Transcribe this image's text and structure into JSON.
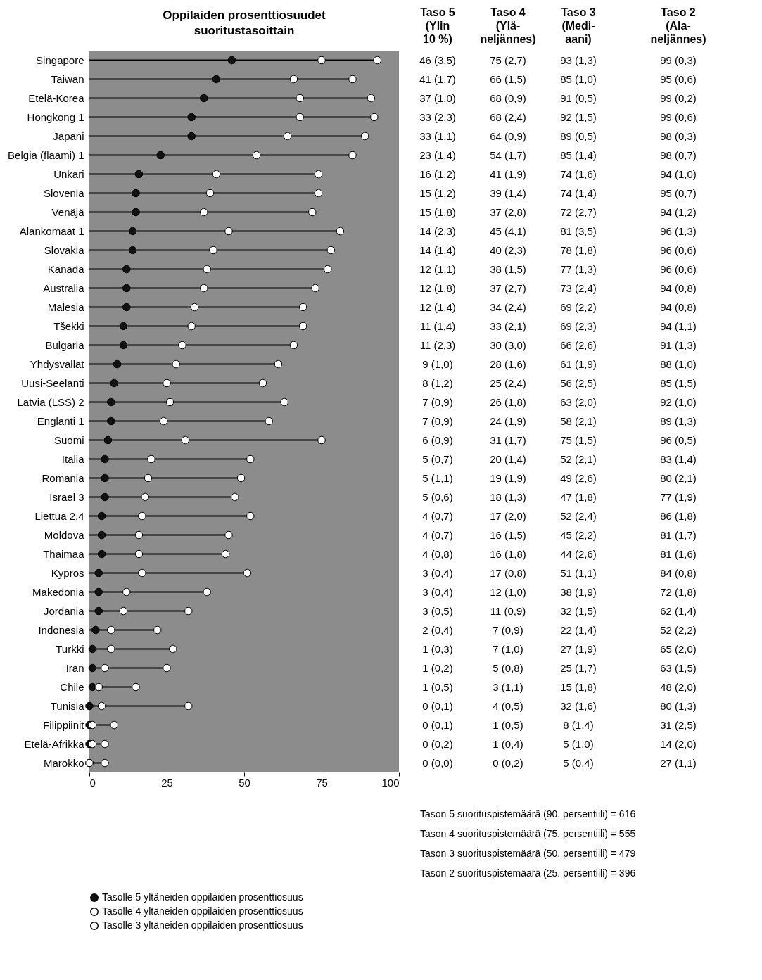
{
  "chart_data": [
    {
      "type": "scatter",
      "orientation": "horizontal",
      "title": "Oppilaiden prosenttiosuudet\nsuoritustasoittain",
      "categories": [
        "Singapore",
        "Taiwan",
        "Etelä-Korea",
        "Hongkong 1",
        "Japani",
        "Belgia (flaami) 1",
        "Unkari",
        "Slovenia",
        "Venäjä",
        "Alankomaat 1",
        "Slovakia",
        "Kanada",
        "Australia",
        "Malesia",
        "Tšekki",
        "Bulgaria",
        "Yhdysvallat",
        "Uusi-Seelanti",
        "Latvia (LSS) 2",
        "Englanti 1",
        "Suomi",
        "Italia",
        "Romania",
        "Israel 3",
        "Liettua 2,4",
        "Moldova",
        "Thaimaa",
        "Kypros",
        "Makedonia",
        "Jordania",
        "Indonesia",
        "Turkki",
        "Iran",
        "Chile",
        "Tunisia",
        "Filippiinit",
        "Etelä-Afrikka",
        "Marokko"
      ],
      "series": [
        {
          "name": "Tasolle 5 yltäneiden oppilaiden prosenttiosuus",
          "type": "scatter",
          "color": "#111111",
          "values": [
            46,
            41,
            37,
            33,
            33,
            23,
            16,
            15,
            15,
            14,
            14,
            12,
            12,
            12,
            11,
            11,
            9,
            8,
            7,
            7,
            6,
            5,
            5,
            5,
            4,
            4,
            4,
            3,
            3,
            3,
            2,
            1,
            1,
            1,
            0,
            0,
            0,
            0
          ],
          "value_labels": [
            "46 (3,5)",
            "41 (1,7)",
            "37 (1,0)",
            "33 (2,3)",
            "33 (1,1)",
            "23 (1,4)",
            "16 (1,2)",
            "15 (1,2)",
            "15 (1,8)",
            "14 (2,3)",
            "14 (1,4)",
            "12 (1,1)",
            "12 (1,8)",
            "12 (1,4)",
            "11 (1,4)",
            "11 (2,3)",
            "9 (1,0)",
            "8 (1,2)",
            "7 (0,9)",
            "7 (0,9)",
            "6 (0,9)",
            "5 (0,7)",
            "5 (1,1)",
            "5 (0,6)",
            "4 (0,7)",
            "4 (0,7)",
            "4 (0,8)",
            "3 (0,4)",
            "3 (0,4)",
            "3 (0,5)",
            "2 (0,4)",
            "1 (0,3)",
            "1 (0,2)",
            "1 (0,5)",
            "0 (0,1)",
            "0 (0,1)",
            "0 (0,2)",
            "0 (0,0)"
          ]
        },
        {
          "name": "Tasolle 4 yltäneiden oppilaiden prosenttiosuus",
          "type": "scatter",
          "color": "#ffffff",
          "values": [
            75,
            66,
            68,
            68,
            64,
            54,
            41,
            39,
            37,
            45,
            40,
            38,
            37,
            34,
            33,
            30,
            28,
            25,
            26,
            24,
            31,
            20,
            19,
            18,
            17,
            16,
            16,
            17,
            12,
            11,
            7,
            7,
            5,
            3,
            4,
            1,
            1,
            0
          ],
          "value_labels": [
            "75 (2,7)",
            "66 (1,5)",
            "68 (0,9)",
            "68 (2,4)",
            "64 (0,9)",
            "54 (1,7)",
            "41 (1,9)",
            "39 (1,4)",
            "37 (2,8)",
            "45 (4,1)",
            "40 (2,3)",
            "38 (1,5)",
            "37 (2,7)",
            "34 (2,4)",
            "33 (2,1)",
            "30 (3,0)",
            "28 (1,6)",
            "25 (2,4)",
            "26 (1,8)",
            "24 (1,9)",
            "31 (1,7)",
            "20 (1,4)",
            "19 (1,9)",
            "18 (1,3)",
            "17 (2,0)",
            "16 (1,5)",
            "16 (1,8)",
            "17 (0,8)",
            "12 (1,0)",
            "11 (0,9)",
            "7 (0,9)",
            "7 (1,0)",
            "5 (0,8)",
            "3 (1,1)",
            "4 (0,5)",
            "1 (0,5)",
            "1 (0,4)",
            "0 (0,2)"
          ]
        },
        {
          "name": "Tasolle 3 yltäneiden oppilaiden prosenttiosuus",
          "type": "lollipop",
          "color": "#ffffff",
          "values": [
            93,
            85,
            91,
            92,
            89,
            85,
            74,
            74,
            72,
            81,
            78,
            77,
            73,
            69,
            69,
            66,
            61,
            56,
            63,
            58,
            75,
            52,
            49,
            47,
            52,
            45,
            44,
            51,
            38,
            32,
            22,
            27,
            25,
            15,
            32,
            8,
            5,
            5
          ],
          "value_labels": [
            "93 (1,3)",
            "85 (1,0)",
            "91 (0,5)",
            "92 (1,5)",
            "89 (0,5)",
            "85 (1,4)",
            "74 (1,6)",
            "74 (1,4)",
            "72 (2,7)",
            "81 (3,5)",
            "78 (1,8)",
            "77 (1,3)",
            "73 (2,4)",
            "69 (2,2)",
            "69 (2,3)",
            "66 (2,6)",
            "61 (1,9)",
            "56 (2,5)",
            "63 (2,0)",
            "58 (2,1)",
            "75 (1,5)",
            "52 (2,1)",
            "49 (2,6)",
            "47 (1,8)",
            "52 (2,4)",
            "45 (2,2)",
            "44 (2,6)",
            "51 (1,1)",
            "38 (1,9)",
            "32 (1,5)",
            "22 (1,4)",
            "27 (1,9)",
            "25 (1,7)",
            "15 (1,8)",
            "32 (1,6)",
            "8 (1,4)",
            "5 (1,0)",
            "5 (0,4)"
          ]
        }
      ],
      "xlim": [
        0,
        100
      ],
      "xticks": [
        0,
        25,
        50,
        75,
        100
      ],
      "grid": false,
      "marker": "circle",
      "legend": "bottom",
      "annotations": [
        "Taso 5\n(Ylin\n10 %)",
        "Taso 4\n(Ylä-\nneljännes)",
        "Taso 3\n(Medi-\naani)",
        "Tason 5 suorituspistemäärä (90. persentiili) = 616",
        "Tason 4 suorituspistemäärä (75. persentiili) = 555",
        "Tason 3 suorituspistemäärä (50. persentiili) = 479",
        "Tason 2 suorituspistemäärä (25. persentiili) = 396"
      ]
    },
    {
      "type": "other",
      "title": "Taso 2\n(Ala-\nneljännes)",
      "annotations": [
        "99 (0,3)",
        "95 (0,6)",
        "99 (0,2)",
        "99 (0,6)",
        "98 (0,3)",
        "98 (0,7)",
        "94 (1,0)",
        "95 (0,7)",
        "94 (1,2)",
        "96 (1,3)",
        "96 (0,6)",
        "96 (0,6)",
        "94 (0,8)",
        "94 (0,8)",
        "94 (1,1)",
        "91 (1,3)",
        "88 (1,0)",
        "85 (1,5)",
        "92 (1,0)",
        "89 (1,3)",
        "96 (0,5)",
        "83 (1,4)",
        "80 (2,1)",
        "77 (1,9)",
        "86 (1,8)",
        "81 (1,7)",
        "81 (1,6)",
        "84 (0,8)",
        "72 (1,8)",
        "62 (1,4)",
        "52 (2,2)",
        "65 (2,0)",
        "63 (1,5)",
        "48 (2,0)",
        "80 (1,3)",
        "31 (2,5)",
        "14 (2,0)",
        "27 (1,1)"
      ]
    }
  ]
}
